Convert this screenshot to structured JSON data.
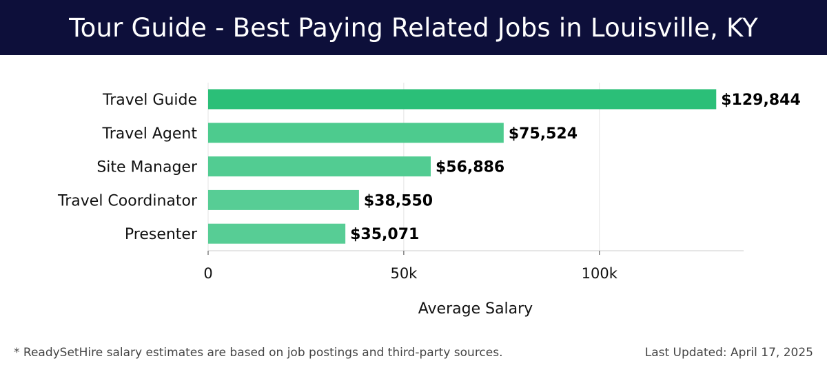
{
  "header": {
    "title": "Tour Guide - Best Paying Related Jobs in Louisville, KY"
  },
  "chart_data": {
    "type": "bar",
    "orientation": "horizontal",
    "title": "Tour Guide - Best Paying Related Jobs in Louisville, KY",
    "categories": [
      "Travel Guide",
      "Travel Agent",
      "Site Manager",
      "Travel Coordinator",
      "Presenter"
    ],
    "values": [
      129844,
      75524,
      56886,
      38550,
      35071
    ],
    "value_labels": [
      "$129,844",
      "$75,524",
      "$56,886",
      "$38,550",
      "$35,071"
    ],
    "xlabel": "Average Salary",
    "ylabel": "",
    "xlim": [
      0,
      136842
    ],
    "xticks": [
      0,
      50000,
      100000
    ],
    "xtick_labels": [
      "0",
      "50k",
      "100k"
    ],
    "grid": true,
    "colors": [
      "#2bbf78",
      "#4dcb8e",
      "#52cc92",
      "#57cd95",
      "#57cd95"
    ]
  },
  "footer": {
    "note": "* ReadySetHire salary estimates are based on job postings and third-party sources.",
    "updated": "Last Updated: April 17, 2025"
  }
}
